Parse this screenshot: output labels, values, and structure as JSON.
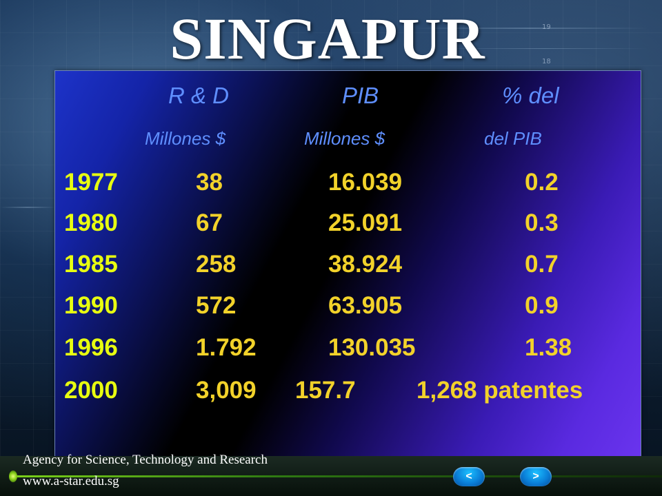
{
  "slide": {
    "title": "SINGAPUR"
  },
  "table": {
    "headers": [
      {
        "line1": "R & D",
        "line2": "Millones $"
      },
      {
        "line1": "PIB",
        "line2": "Millones $"
      },
      {
        "line1": "% del",
        "line2": "del PIB"
      }
    ],
    "rows": [
      {
        "year": "1977",
        "rd": "38",
        "pib": "16.039",
        "pct": "0.2"
      },
      {
        "year": "1980",
        "rd": "67",
        "pib": "25.091",
        "pct": "0.3"
      },
      {
        "year": "1985",
        "rd": "258",
        "pib": "38.924",
        "pct": "0.7"
      },
      {
        "year": "1990",
        "rd": "572",
        "pib": "63.905",
        "pct": "0.9"
      },
      {
        "year": "1996",
        "rd": "1.792",
        "pib": "130.035",
        "pct": "1.38"
      },
      {
        "year": "2000",
        "rd": "3,009",
        "pib": "157.7",
        "pct": "1,268 patentes"
      }
    ]
  },
  "footer": {
    "org_name": "Agency for Science, Technology and Research",
    "url": "www.a-star.edu.sg",
    "prev_label": "<",
    "next_label": ">"
  },
  "background": {
    "ticks": [
      "19",
      "18"
    ]
  },
  "colors": {
    "header_text": "#5f8fff",
    "year_text": "#e8ff10",
    "value_text": "#f2d22a",
    "title_text": "#ffffff",
    "nav_button": "#0a7fd8",
    "footer_accent": "#7cd21a"
  }
}
